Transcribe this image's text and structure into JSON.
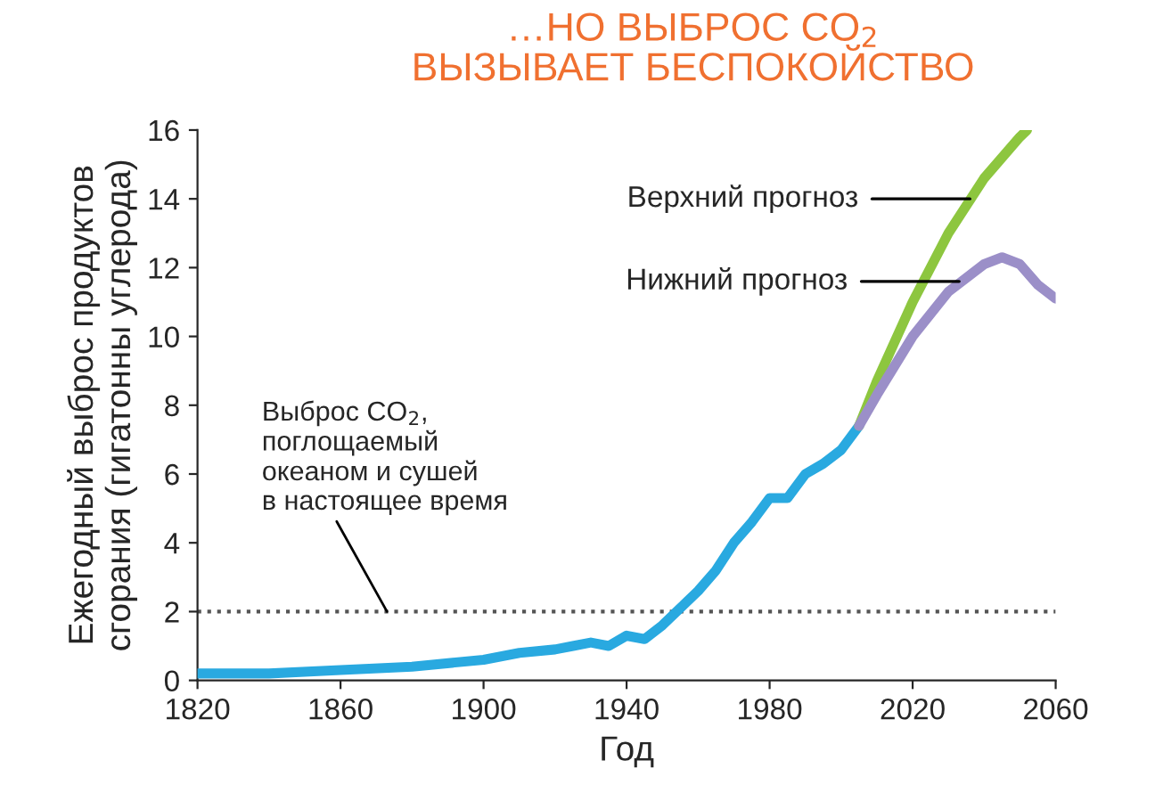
{
  "chart_data": {
    "type": "line",
    "title": "…НО ВЫБРОС CO$_{2}$\nВЫЗЫВАЕТ БЕСПОКОЙСТВО",
    "xlabel": "Год",
    "ylabel": "Ежегодный выброс продуктов\nсгорания (гигатонны углерода)",
    "series": [
      {
        "color": "#29a9e0",
        "x": [
          1820,
          1840,
          1860,
          1880,
          1900,
          1910,
          1920,
          1925,
          1930,
          1935,
          1940,
          1945,
          1950,
          1955,
          1960,
          1965,
          1970,
          1975,
          1980,
          1985,
          1990,
          1995,
          2000,
          2005
        ],
        "values": [
          0.2,
          0.2,
          0.3,
          0.4,
          0.6,
          0.8,
          0.9,
          1.0,
          1.1,
          1.0,
          1.3,
          1.2,
          1.6,
          2.1,
          2.6,
          3.2,
          4.0,
          4.6,
          5.3,
          5.3,
          6.0,
          6.3,
          6.7,
          7.4
        ]
      },
      {
        "color": "#8dc63f",
        "x": [
          2005,
          2010,
          2020,
          2030,
          2040,
          2050,
          2052
        ],
        "values": [
          7.4,
          8.7,
          11.0,
          13.0,
          14.6,
          15.8,
          16.0
        ]
      },
      {
        "color": "#9b8fc8",
        "x": [
          2005,
          2010,
          2020,
          2030,
          2040,
          2045,
          2050,
          2055,
          2060
        ],
        "values": [
          7.4,
          8.3,
          10.0,
          11.3,
          12.1,
          12.3,
          12.1,
          11.5,
          11.1
        ]
      }
    ],
    "annotations": [
      {
        "text": "Верхний прогноз",
        "x": 2036,
        "y": 14.0
      },
      {
        "text": "Нижний прогноз",
        "x": 2033,
        "y": 11.6
      }
    ],
    "ref_lines": [
      {
        "axis": "y",
        "value": 2,
        "label": "Выброс CO$_{2}$,\nпоглощаемый\nокеаном и сушей\nв настоящее время",
        "color": "#555555",
        "line_style": "dotted"
      }
    ],
    "xlim": [
      1820,
      2060
    ],
    "ylim": [
      0,
      16
    ],
    "xticks": [
      1820,
      1860,
      1900,
      1940,
      1980,
      2020,
      2060
    ],
    "yticks": [
      0,
      2,
      4,
      6,
      8,
      10,
      12,
      14,
      16
    ],
    "grid": false,
    "legend": false,
    "marker": "none",
    "line_style": "solid"
  }
}
